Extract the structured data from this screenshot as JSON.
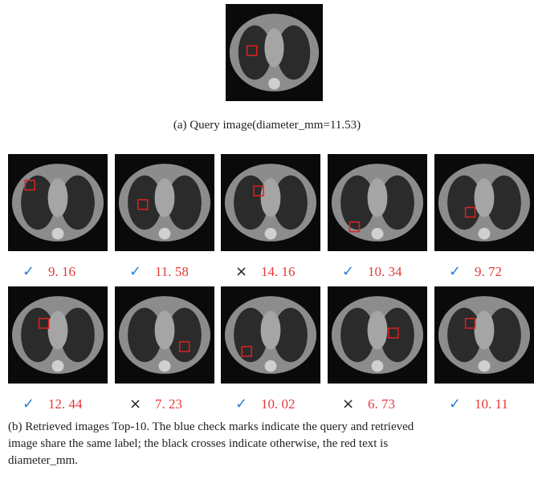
{
  "query": {
    "caption": "(a) Query image(diameter_mm=11.53)"
  },
  "results": [
    {
      "mark": "✓",
      "diameter": "9. 16"
    },
    {
      "mark": "✓",
      "diameter": "11. 58"
    },
    {
      "mark": "×",
      "diameter": "14. 16"
    },
    {
      "mark": "✓",
      "diameter": "10. 34"
    },
    {
      "mark": "✓",
      "diameter": "9. 72"
    },
    {
      "mark": "✓",
      "diameter": "12. 44"
    },
    {
      "mark": "×",
      "diameter": "7. 23"
    },
    {
      "mark": "✓",
      "diameter": "10. 02"
    },
    {
      "mark": "×",
      "diameter": "6. 73"
    },
    {
      "mark": "✓",
      "diameter": "10. 11"
    }
  ],
  "caption": {
    "lines": [
      "(b) Retrieved images Top-10. The blue check marks indicate the query and retrieved",
      "image share the same label; the black crosses indicate otherwise, the red text is",
      "diameter_mm."
    ]
  }
}
